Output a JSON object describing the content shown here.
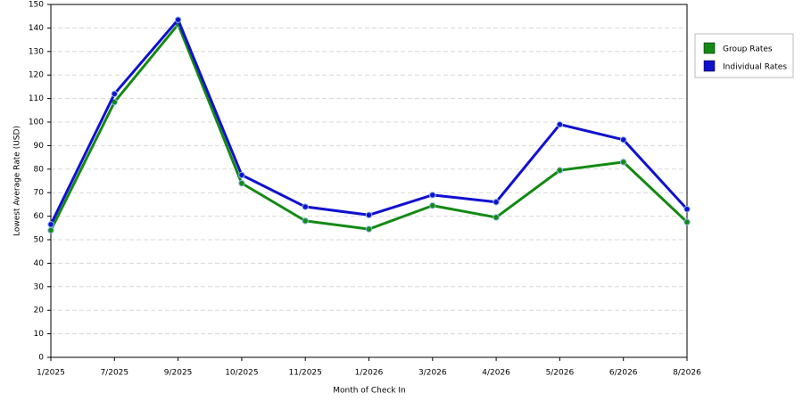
{
  "chart_data": {
    "type": "line",
    "x_label": "Month of Check In",
    "y_label": "Lowest Average Rate (USD)",
    "categories": [
      "1/2025",
      "7/2025",
      "9/2025",
      "10/2025",
      "11/2025",
      "1/2026",
      "3/2026",
      "4/2026",
      "5/2026",
      "6/2026",
      "8/2026"
    ],
    "series": [
      {
        "name": "Group Rates",
        "color": "#138a13",
        "values": [
          54,
          108.5,
          141.5,
          74,
          58,
          54.5,
          64.5,
          59.5,
          79.5,
          83,
          57.5
        ]
      },
      {
        "name": "Individual Rates",
        "color": "#1010d0",
        "values": [
          56.5,
          112,
          143.5,
          77.5,
          64,
          60.5,
          69,
          66,
          99,
          92.5,
          63
        ]
      }
    ],
    "ylim": [
      0,
      150
    ],
    "yticks": [
      0,
      10,
      20,
      30,
      40,
      50,
      60,
      70,
      80,
      90,
      100,
      110,
      120,
      130,
      140,
      150
    ],
    "grid": true,
    "legend": "right"
  }
}
